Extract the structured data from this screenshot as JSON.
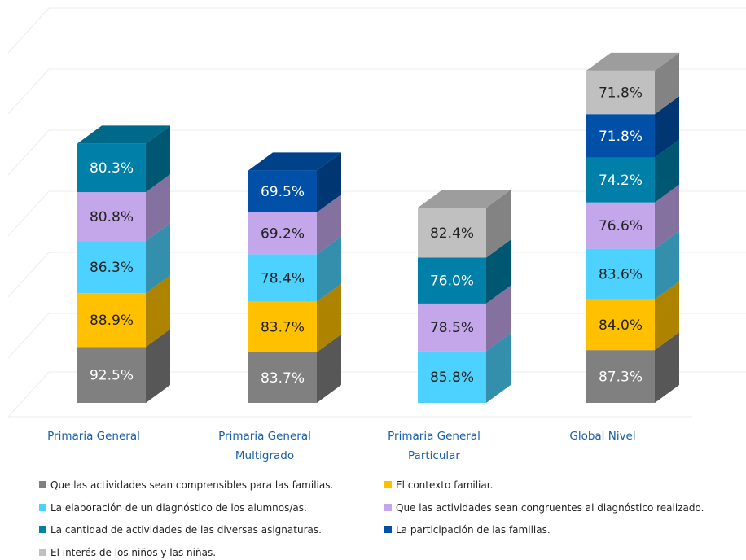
{
  "chart_data": {
    "type": "bar3d_stacked",
    "categories": [
      "Primaria General",
      "Primaria General Multigrado",
      "Primaria General Particular",
      "Global Nivel"
    ],
    "series": [
      {
        "name": "Que las actividades sean comprensibles para las familias.",
        "color": "#808080",
        "values": [
          92.5,
          83.7,
          null,
          87.3
        ],
        "value_labels": [
          "92.5%",
          "83.7%",
          null,
          "87.3%"
        ]
      },
      {
        "name": "El contexto familiar.",
        "color": "#ffc000",
        "values": [
          88.9,
          83.7,
          null,
          84.0
        ],
        "value_labels": [
          "88.9%",
          "83.7%",
          null,
          "84.0%"
        ]
      },
      {
        "name": "La elaboración de un diagnóstico de los alumnos/as.",
        "color": "#4dd2ff",
        "values": [
          86.3,
          78.4,
          85.8,
          83.6
        ],
        "value_labels": [
          "86.3%",
          "78.4%",
          "85.8%",
          "83.6%"
        ]
      },
      {
        "name": "Que las actividades sean congruentes al diagnóstico realizado.",
        "color": "#c4a6ea",
        "values": [
          80.8,
          69.2,
          78.5,
          76.6
        ],
        "value_labels": [
          "80.8%",
          "69.2%",
          "78.5%",
          "76.6%"
        ]
      },
      {
        "name": "La cantidad de actividades de las diversas asignaturas.",
        "color": "#0080a8",
        "values": [
          80.3,
          null,
          76.0,
          74.2
        ],
        "value_labels": [
          "80.3%",
          null,
          "76.0%",
          "74.2%"
        ]
      },
      {
        "name": "La participación de las familias.",
        "color": "#0050a8",
        "values": [
          null,
          69.5,
          null,
          71.8
        ],
        "value_labels": [
          null,
          "69.5%",
          null,
          "71.8%"
        ]
      },
      {
        "name": "El interés de los niños y las niñas.",
        "color": "#c0c0c0",
        "values": [
          null,
          null,
          82.4,
          71.8
        ],
        "value_labels": [
          null,
          null,
          "82.4%",
          "71.8%"
        ]
      }
    ]
  }
}
